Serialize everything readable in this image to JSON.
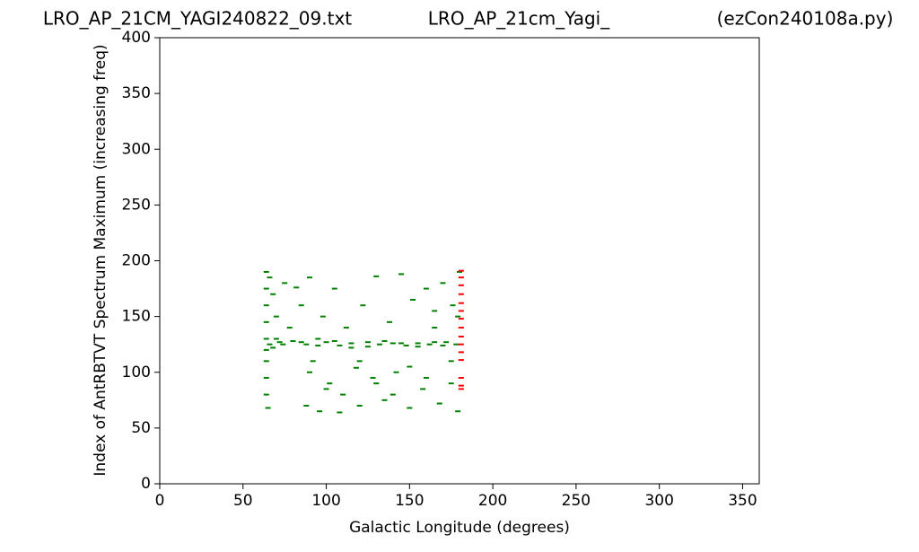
{
  "chart_data": {
    "type": "scatter",
    "titles": [
      "LRO_AP_21CM_YAGI240822_09.txt",
      "LRO_AP_21cm_Yagi_",
      "(ezCon240108a.py)"
    ],
    "x_label": "Galactic Longitude (degrees)",
    "y_label": "Index of AntRBTVT Spectrum Maximum (increasing freq)",
    "xlim": [
      0,
      360
    ],
    "ylim": [
      0,
      400
    ],
    "xticks": [
      0,
      50,
      100,
      150,
      200,
      250,
      300,
      350
    ],
    "yticks": [
      0,
      50,
      100,
      150,
      200,
      250,
      300,
      350,
      400
    ],
    "series": [
      {
        "color": "green",
        "x": [
          64,
          64,
          64,
          64,
          64,
          64,
          64,
          64,
          64,
          65,
          66,
          68,
          70,
          72,
          74,
          75,
          78,
          80,
          82,
          85,
          88,
          90,
          92,
          95,
          96,
          98,
          100,
          102,
          105,
          108,
          110,
          112,
          115,
          118,
          120,
          122,
          125,
          128,
          130,
          132,
          135,
          138,
          140,
          142,
          145,
          148,
          150,
          152,
          155,
          158,
          160,
          162,
          165,
          168,
          170,
          172,
          175,
          176,
          178,
          179,
          180,
          179,
          66,
          68,
          70,
          85,
          95,
          105,
          115,
          125,
          135,
          145,
          155,
          165,
          170,
          90,
          100,
          120,
          130,
          140,
          160,
          175,
          88,
          108,
          150,
          165
        ],
        "y": [
          190,
          175,
          160,
          145,
          130,
          120,
          110,
          95,
          80,
          68,
          185,
          170,
          150,
          127,
          125,
          180,
          140,
          128,
          176,
          160,
          125,
          185,
          110,
          130,
          65,
          150,
          127,
          90,
          175,
          124,
          80,
          140,
          126,
          104,
          70,
          160,
          127,
          95,
          186,
          125,
          75,
          145,
          126,
          100,
          188,
          124,
          68,
          165,
          126,
          85,
          175,
          125,
          140,
          72,
          180,
          127,
          110,
          160,
          125,
          65,
          190,
          150,
          125,
          122,
          130,
          127,
          124,
          128,
          122,
          123,
          128,
          126,
          123,
          127,
          124,
          100,
          85,
          110,
          90,
          80,
          95,
          90,
          70,
          64,
          105,
          155
        ]
      },
      {
        "color": "red",
        "x": [
          181,
          181,
          181,
          181,
          181,
          181,
          181,
          181,
          181,
          181,
          181,
          181,
          181,
          181,
          181
        ],
        "y": [
          191,
          185,
          178,
          170,
          162,
          155,
          148,
          140,
          132,
          125,
          118,
          111,
          95,
          88,
          85
        ]
      }
    ]
  }
}
